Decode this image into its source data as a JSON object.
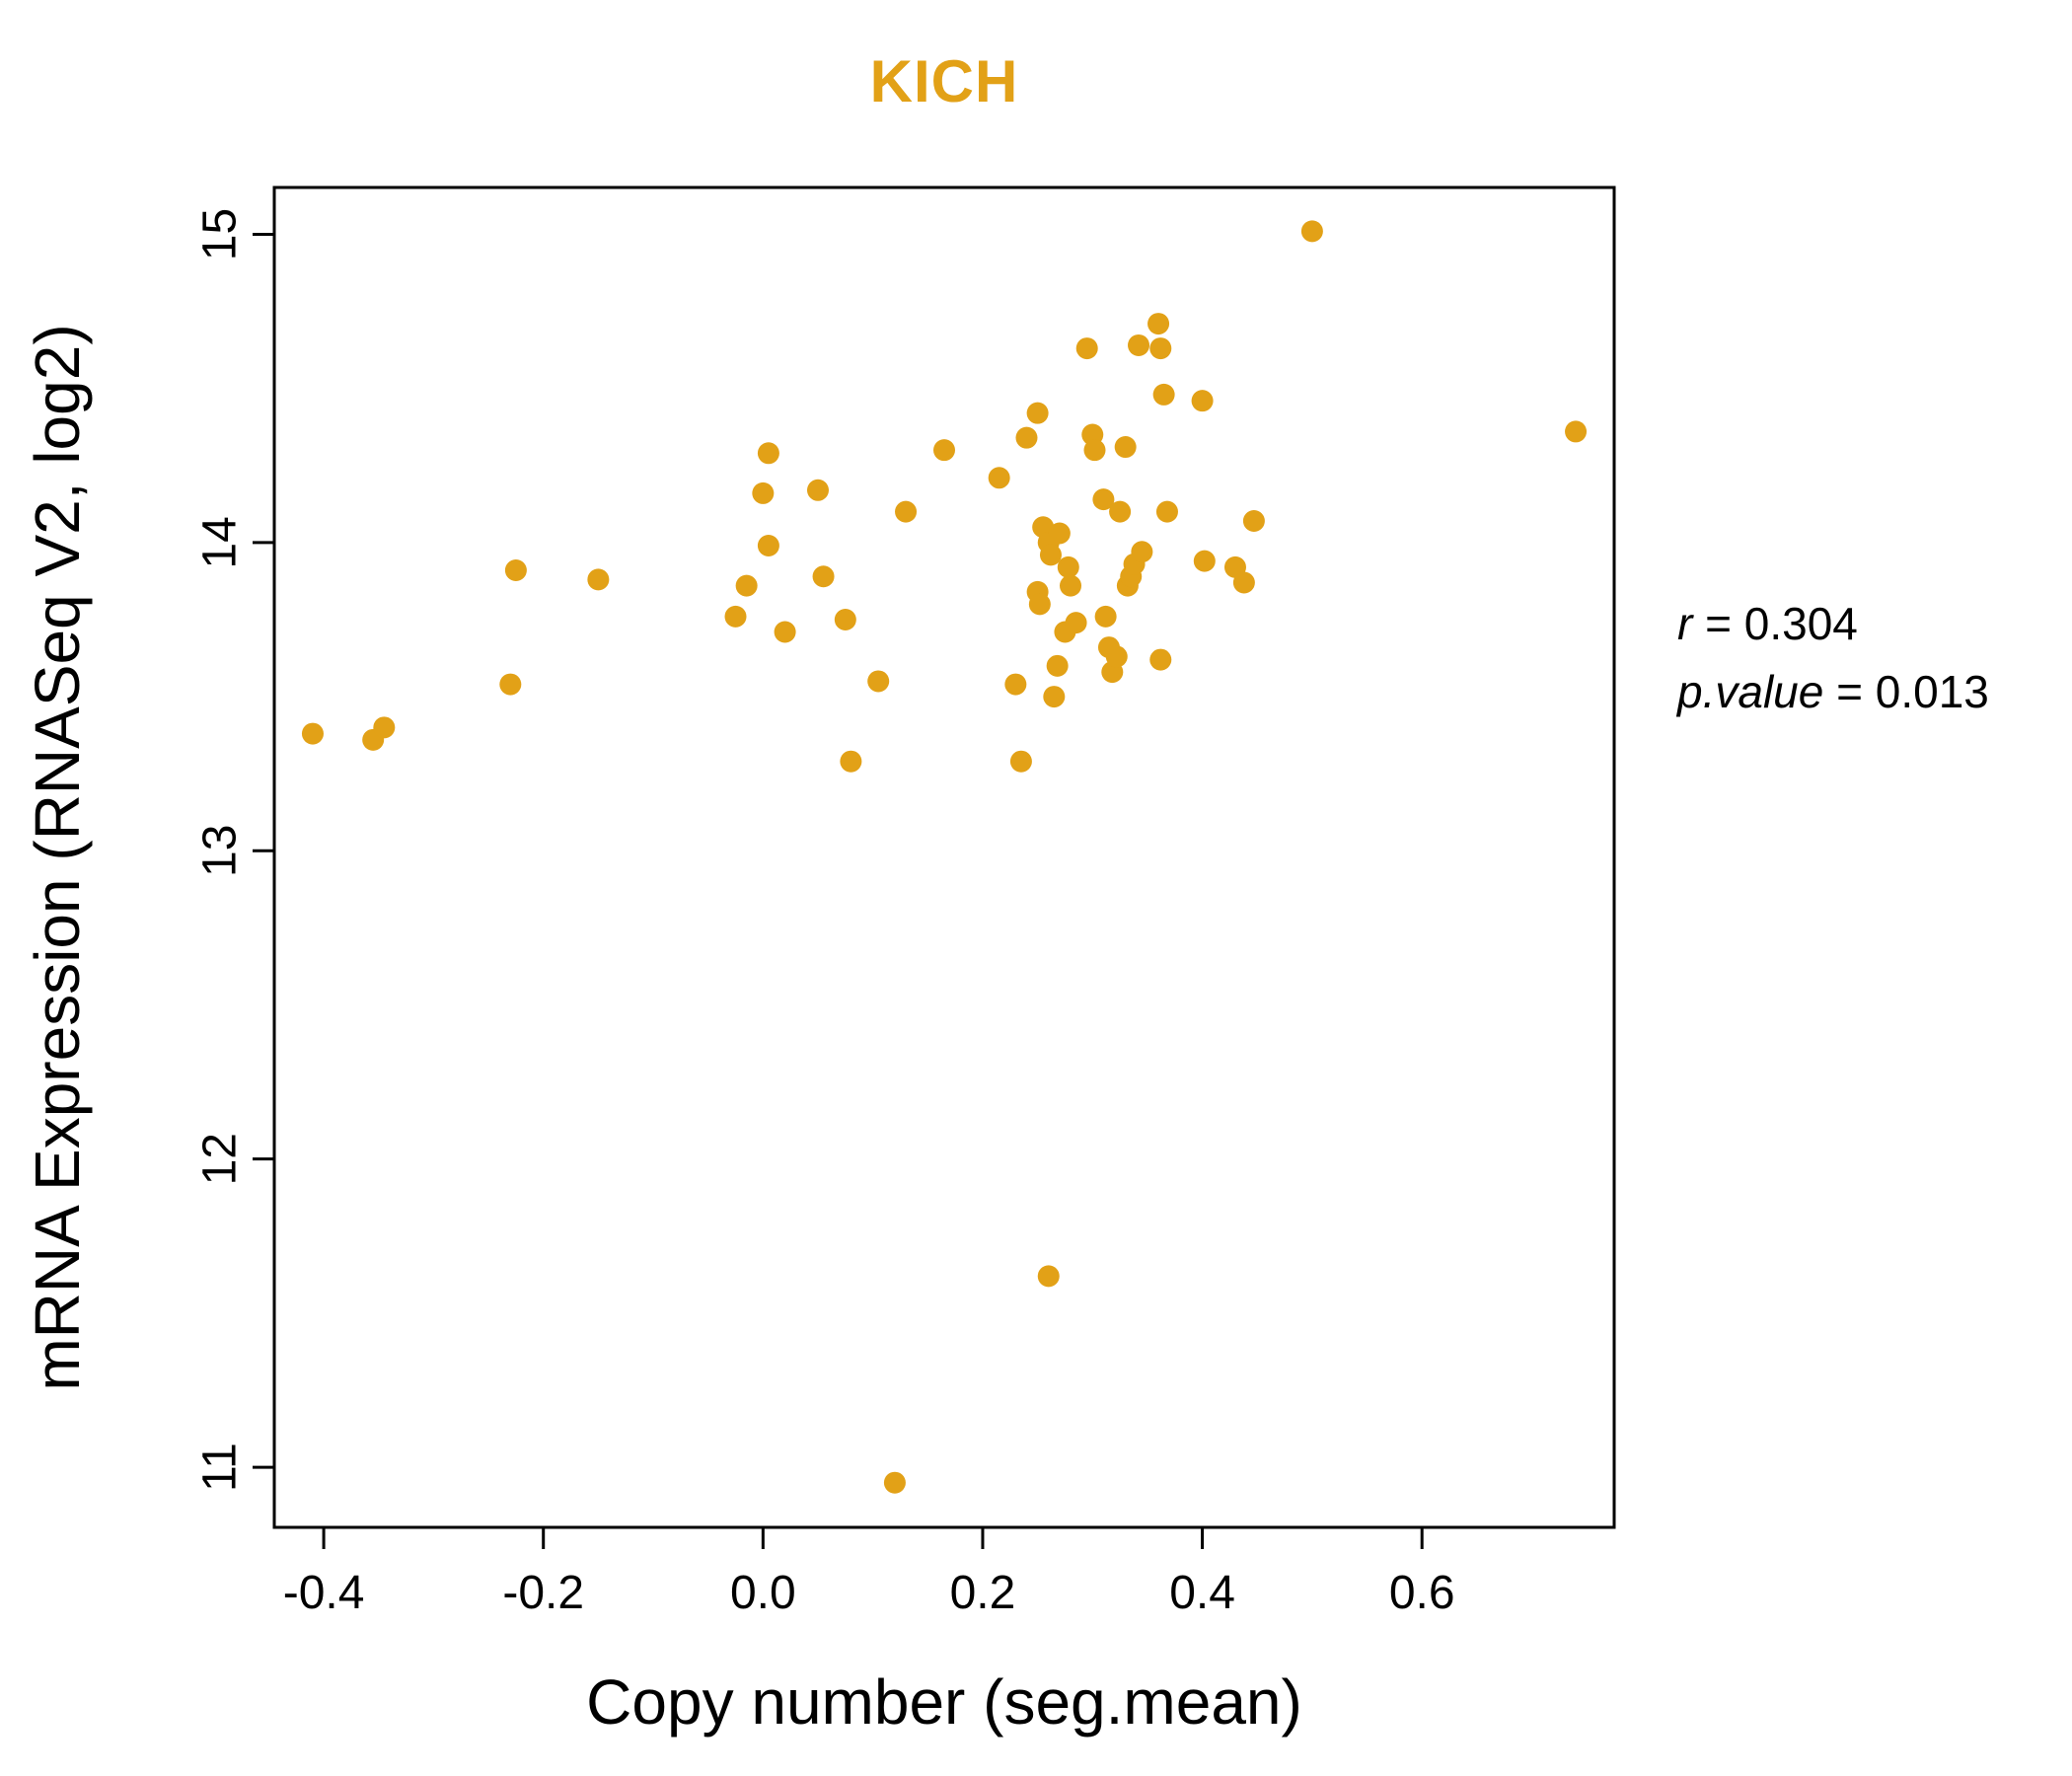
{
  "figure": {
    "accent_color": "#E2A117",
    "point_color": "#E2A117",
    "axis_color": "#000000"
  },
  "chart_data": {
    "type": "scatter",
    "title": "KICH",
    "xlabel": "Copy number (seg.mean)",
    "ylabel": "mRNA Expression (RNASeq V2, log2)",
    "xlim": [
      -0.445,
      0.775
    ],
    "ylim": [
      10.805,
      15.152
    ],
    "xticks": [
      -0.4,
      -0.2,
      0.0,
      0.2,
      0.4,
      0.6
    ],
    "xtick_labels": [
      "-0.4",
      "-0.2",
      "0.0",
      "0.2",
      "0.4",
      "0.6"
    ],
    "yticks": [
      11,
      12,
      13,
      14,
      15
    ],
    "ytick_labels": [
      "11",
      "12",
      "13",
      "14",
      "15"
    ],
    "grid": false,
    "legend": "none",
    "stats": {
      "r": 0.304,
      "p_value": 0.013
    },
    "points": [
      [
        -0.41,
        13.38
      ],
      [
        -0.355,
        13.36
      ],
      [
        -0.345,
        13.4
      ],
      [
        -0.23,
        13.54
      ],
      [
        -0.225,
        13.91
      ],
      [
        -0.15,
        13.88
      ],
      [
        -0.025,
        13.76
      ],
      [
        -0.015,
        13.86
      ],
      [
        0.0,
        14.16
      ],
      [
        0.005,
        14.29
      ],
      [
        0.005,
        13.99
      ],
      [
        0.02,
        13.71
      ],
      [
        0.05,
        14.17
      ],
      [
        0.055,
        13.89
      ],
      [
        0.075,
        13.75
      ],
      [
        0.08,
        13.29
      ],
      [
        0.105,
        13.55
      ],
      [
        0.12,
        10.95
      ],
      [
        0.13,
        14.1
      ],
      [
        0.165,
        14.3
      ],
      [
        0.215,
        14.21
      ],
      [
        0.23,
        13.54
      ],
      [
        0.235,
        13.29
      ],
      [
        0.24,
        14.34
      ],
      [
        0.25,
        14.42
      ],
      [
        0.25,
        13.84
      ],
      [
        0.252,
        13.8
      ],
      [
        0.255,
        14.05
      ],
      [
        0.26,
        14.0
      ],
      [
        0.262,
        13.96
      ],
      [
        0.265,
        13.5
      ],
      [
        0.268,
        13.6
      ],
      [
        0.27,
        14.03
      ],
      [
        0.275,
        13.71
      ],
      [
        0.278,
        13.92
      ],
      [
        0.28,
        13.86
      ],
      [
        0.285,
        13.74
      ],
      [
        0.26,
        11.62
      ],
      [
        0.295,
        14.63
      ],
      [
        0.3,
        14.35
      ],
      [
        0.302,
        14.3
      ],
      [
        0.31,
        14.14
      ],
      [
        0.312,
        13.76
      ],
      [
        0.315,
        13.66
      ],
      [
        0.318,
        13.58
      ],
      [
        0.322,
        13.63
      ],
      [
        0.325,
        14.1
      ],
      [
        0.33,
        14.31
      ],
      [
        0.332,
        13.86
      ],
      [
        0.335,
        13.89
      ],
      [
        0.338,
        13.93
      ],
      [
        0.342,
        14.64
      ],
      [
        0.345,
        13.97
      ],
      [
        0.36,
        14.71
      ],
      [
        0.362,
        14.63
      ],
      [
        0.365,
        14.48
      ],
      [
        0.368,
        14.1
      ],
      [
        0.362,
        13.62
      ],
      [
        0.4,
        14.46
      ],
      [
        0.402,
        13.94
      ],
      [
        0.43,
        13.92
      ],
      [
        0.438,
        13.87
      ],
      [
        0.447,
        14.07
      ],
      [
        0.5,
        15.01
      ],
      [
        0.74,
        14.36
      ]
    ]
  },
  "annotation": {
    "line1_symbol": "r",
    "line1_rest": " = 0.304",
    "line2_symbol": "p.value",
    "line2_rest": " = 0.013"
  }
}
